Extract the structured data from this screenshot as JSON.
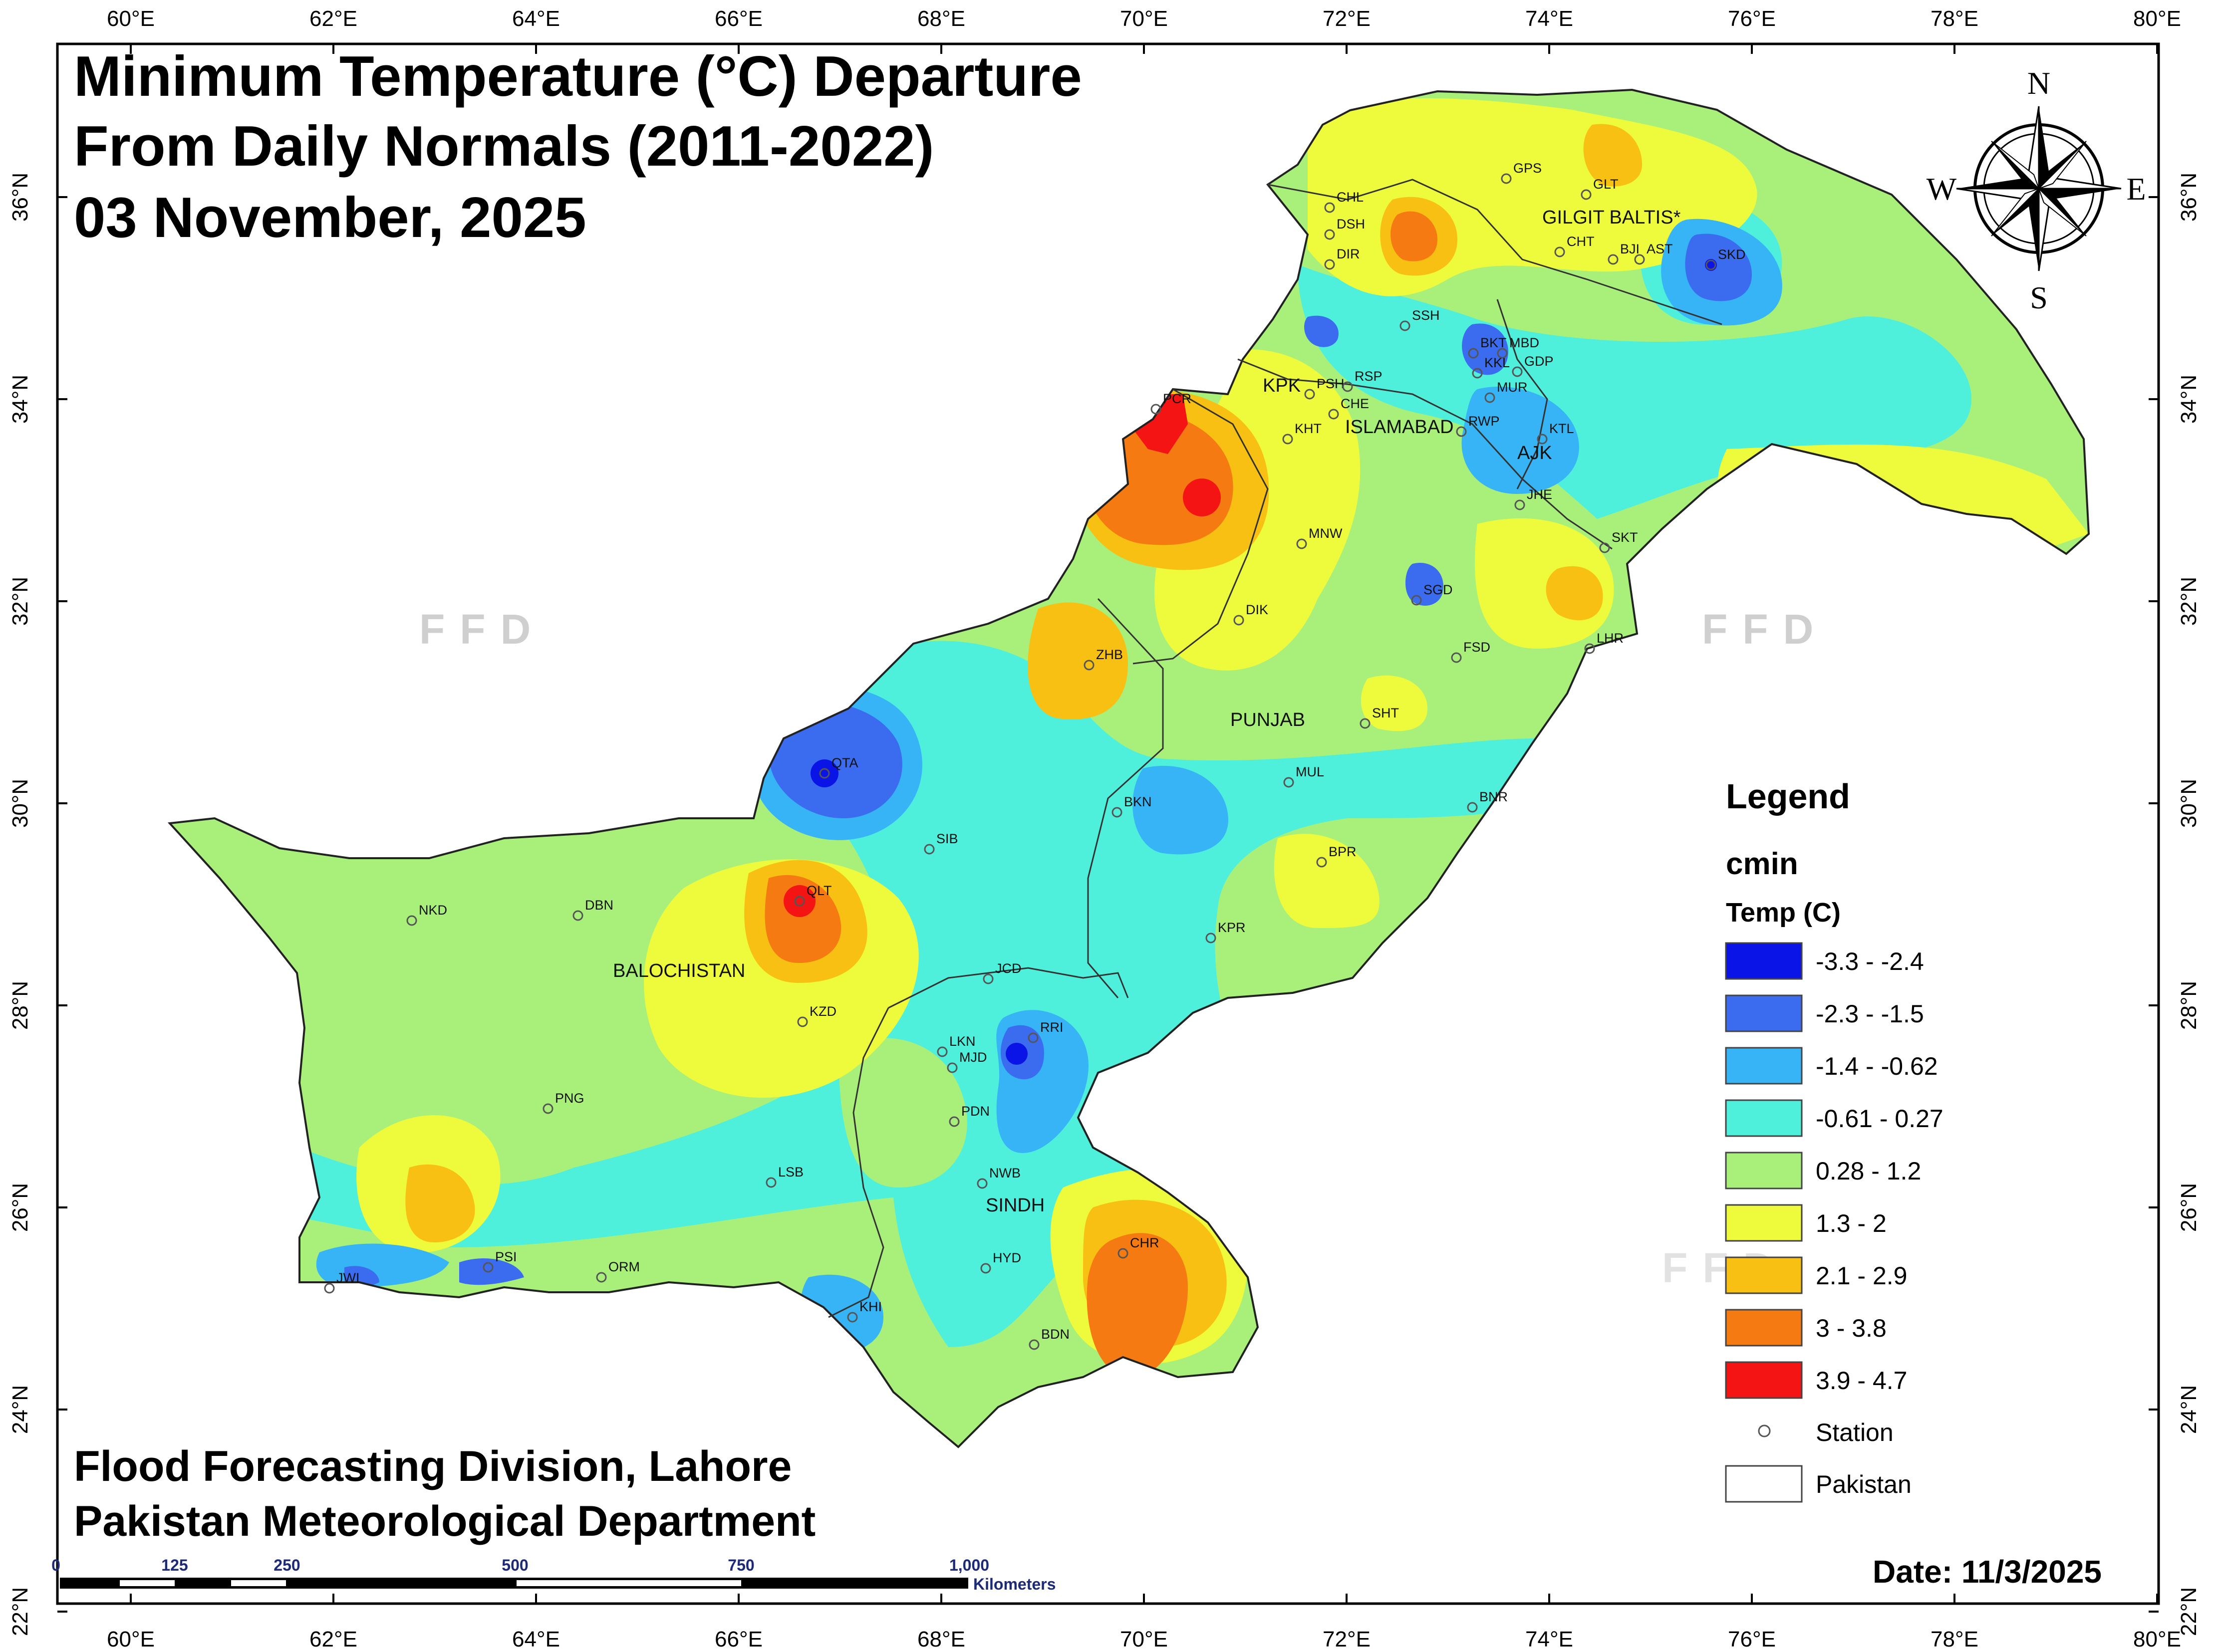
{
  "title": {
    "line1": "Minimum Temperature (°C) Departure",
    "line2": "From Daily Normals (2011-2022)",
    "line3": "03 November, 2025"
  },
  "footer": {
    "org1": "Flood Forecasting Division, Lahore",
    "org2": "Pakistan Meteorological Department",
    "date": "Date: 11/3/2025"
  },
  "axes": {
    "lon": [
      "60°E",
      "62°E",
      "64°E",
      "66°E",
      "68°E",
      "70°E",
      "72°E",
      "74°E",
      "76°E",
      "78°E",
      "80°E"
    ],
    "lat": [
      "36°N",
      "34°N",
      "32°N",
      "30°N",
      "28°N",
      "26°N",
      "24°N",
      "22°N"
    ]
  },
  "compass": {
    "n": "N",
    "s": "S",
    "e": "E",
    "w": "W"
  },
  "watermark": "FFD",
  "regions": {
    "gb": "GILGIT BALTIS*",
    "kpk": "KPK",
    "isb": "ISLAMABAD",
    "ajk": "AJK",
    "punjab": "PUNJAB",
    "balochistan": "BALOCHISTAN",
    "sindh": "SINDH"
  },
  "stations": [
    "GPS",
    "GLT",
    "CHL",
    "DSH",
    "DIR",
    "CHT",
    "BJI",
    "AST",
    "SKD",
    "SSH",
    "BKT",
    "MBD",
    "GDP",
    "KKL",
    "MUR",
    "PSH",
    "RSP",
    "CHE",
    "KHT",
    "RWP",
    "PCR",
    "KTL",
    "JHE",
    "SKT",
    "MNW",
    "DIK",
    "SGD",
    "LHR",
    "FSD",
    "ZHB",
    "SHT",
    "QTA",
    "MUL",
    "BKN",
    "SIB",
    "BNR",
    "BPR",
    "QLT",
    "NKD",
    "DBN",
    "KPR",
    "JCD",
    "KZD",
    "RRI",
    "LKN",
    "MJD",
    "PNG",
    "PDN",
    "LSB",
    "NWB",
    "PSI",
    "JWI",
    "ORM",
    "CHR",
    "HYD",
    "KHI",
    "BDN"
  ],
  "legend": {
    "title": "Legend",
    "layer": "cmin",
    "field": "Temp (C)",
    "classes": [
      {
        "label": "-3.3 - -2.4",
        "color": "#0a14e6"
      },
      {
        "label": "-2.3 - -1.5",
        "color": "#3b6cf0"
      },
      {
        "label": "-1.4 - -0.62",
        "color": "#36b4f5"
      },
      {
        "label": "-0.61 - 0.27",
        "color": "#4ef0dc"
      },
      {
        "label": "0.28 - 1.2",
        "color": "#a9f07a"
      },
      {
        "label": "1.3 - 2",
        "color": "#eefa3c"
      },
      {
        "label": "2.1 - 2.9",
        "color": "#f8c012"
      },
      {
        "label": "3 - 3.8",
        "color": "#f57a12"
      },
      {
        "label": "3.9 - 4.7",
        "color": "#f41414"
      }
    ],
    "station": "Station",
    "pakistan": "Pakistan"
  },
  "scalebar": {
    "ticks": [
      "0",
      "125",
      "250",
      "500",
      "750",
      "1,000"
    ],
    "unit": "Kilometers"
  }
}
